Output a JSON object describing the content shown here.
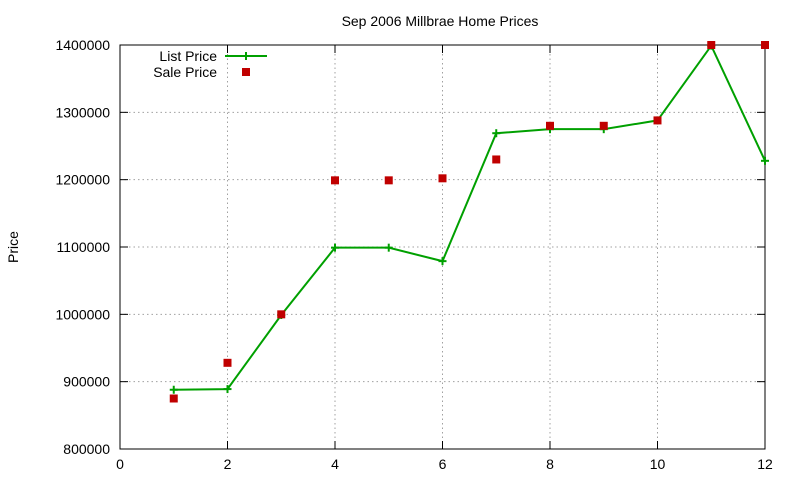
{
  "chart_data": {
    "type": "line",
    "title": "Sep 2006 Millbrae Home Prices",
    "xlabel": "",
    "ylabel": "Price",
    "xlim": [
      0,
      12
    ],
    "ylim": [
      800000,
      1400000
    ],
    "x_ticks": [
      0,
      2,
      4,
      6,
      8,
      10,
      12
    ],
    "y_ticks": [
      800000,
      900000,
      1000000,
      1100000,
      1200000,
      1300000,
      1400000
    ],
    "grid": true,
    "legend_position": "top-left",
    "series": [
      {
        "name": "List Price",
        "style": "line-with-plus-markers",
        "color": "#00a000",
        "points": [
          [
            1,
            888000
          ],
          [
            2,
            889000
          ],
          [
            3,
            999000
          ],
          [
            4,
            1099000
          ],
          [
            5,
            1099000
          ],
          [
            6,
            1079000
          ],
          [
            7,
            1269000
          ],
          [
            8,
            1275000
          ],
          [
            9,
            1275000
          ],
          [
            10,
            1288000
          ],
          [
            11,
            1399000
          ],
          [
            12,
            1228000
          ]
        ]
      },
      {
        "name": "Sale Price",
        "style": "square-markers",
        "color": "#c00000",
        "points": [
          [
            1,
            875000
          ],
          [
            2,
            928000
          ],
          [
            3,
            1000000
          ],
          [
            4,
            1199000
          ],
          [
            5,
            1199000
          ],
          [
            6,
            1202000
          ],
          [
            7,
            1230000
          ],
          [
            8,
            1280000
          ],
          [
            9,
            1280000
          ],
          [
            10,
            1288000
          ],
          [
            11,
            1400000
          ],
          [
            12,
            1400000
          ]
        ]
      }
    ]
  }
}
